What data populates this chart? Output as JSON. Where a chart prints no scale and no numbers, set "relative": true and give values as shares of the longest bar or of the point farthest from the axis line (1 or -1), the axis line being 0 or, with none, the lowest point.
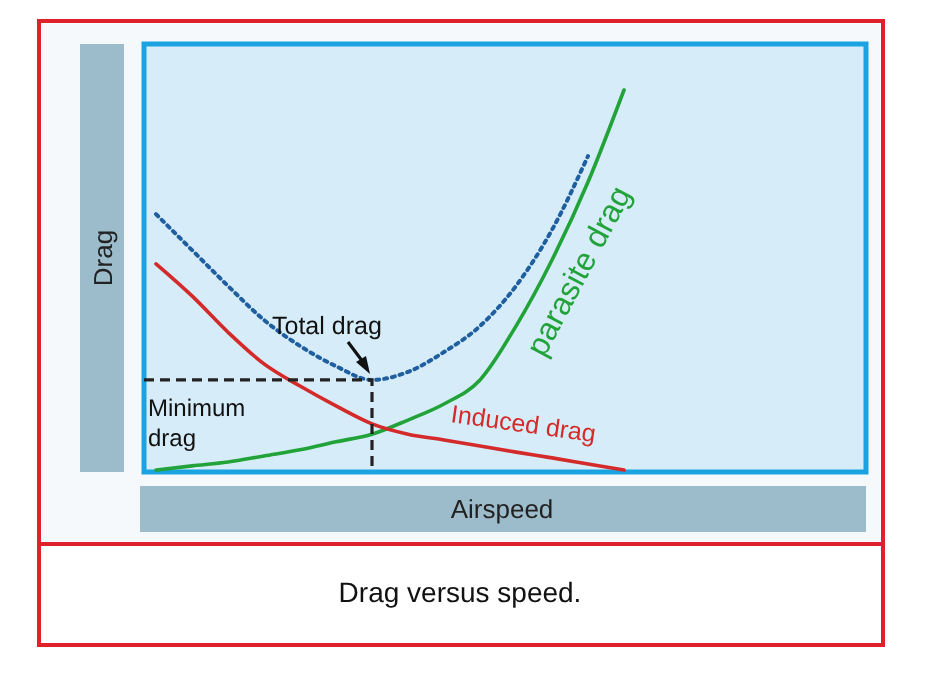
{
  "chart_data": {
    "type": "line",
    "relative": true,
    "xlabel": "Airspeed",
    "ylabel": "Drag",
    "marker": "none",
    "categories": [
      null,
      null,
      null,
      null,
      null,
      null,
      null,
      null,
      null,
      null,
      null,
      null,
      null,
      null,
      null,
      null,
      null,
      null,
      null,
      null
    ],
    "series": [
      {
        "color": "#1f5fa0",
        "line_style": "dotted",
        "values": [
          0.675,
          0.581,
          0.487,
          0.398,
          0.33,
          0.277,
          0.241,
          0.262,
          0.314,
          0.382,
          0.487,
          0.634,
          0.827,
          null,
          null,
          null,
          null,
          null,
          null,
          null
        ]
      },
      {
        "name": "parasite drag",
        "color": "#22a33a",
        "line_style": "solid",
        "values": [
          0.005,
          0.016,
          0.026,
          0.042,
          0.058,
          0.079,
          0.099,
          0.136,
          0.178,
          0.241,
          0.382,
          0.555,
          0.759,
          1.0,
          null,
          null,
          null,
          null,
          null,
          null
        ]
      },
      {
        "name": "Induced drag",
        "color": "#d42a2a",
        "line_style": "solid",
        "values": [
          0.545,
          0.461,
          0.366,
          0.283,
          0.225,
          0.173,
          0.126,
          0.099,
          0.084,
          0.068,
          0.052,
          0.037,
          0.021,
          0.005,
          null,
          null,
          null,
          null,
          null,
          null
        ]
      }
    ],
    "ref_lines": [
      {
        "axis": "y",
        "value": 0.241,
        "label": "Minimum drag",
        "line_style": "dashed",
        "color": "#222222"
      }
    ],
    "annotations": [
      {
        "text": "Total drag",
        "y": 0.241
      },
      "Drag versus speed."
    ]
  }
}
